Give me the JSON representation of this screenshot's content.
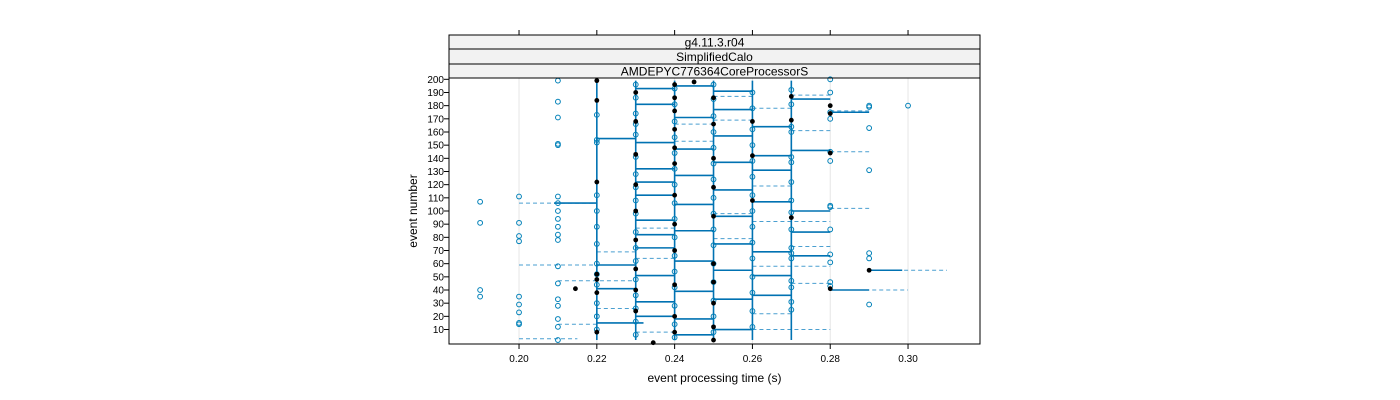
{
  "chart_data": {
    "type": "scatter",
    "strips": [
      "g4.11.3.r04",
      "SimplifiedCalo",
      "AMDEPYC776364CoreProcessorS"
    ],
    "xlabel": "event processing time (s)",
    "ylabel": "event number",
    "xlim": [
      0.182,
      0.3185
    ],
    "ylim": [
      -1,
      201
    ],
    "x_ticks": [
      "0.20",
      "0.22",
      "0.24",
      "0.26",
      "0.28",
      "0.30"
    ],
    "x_tick_values": [
      0.2,
      0.22,
      0.24,
      0.26,
      0.28,
      0.3
    ],
    "y_ticks": [
      10,
      20,
      30,
      40,
      50,
      60,
      70,
      80,
      90,
      100,
      110,
      120,
      130,
      140,
      150,
      160,
      170,
      180,
      190,
      200
    ],
    "grid": true,
    "colors": {
      "open_points": "#0080b8",
      "filled_points": "#000000",
      "lines": "#0072b2",
      "dashed": "#4a9fd0"
    },
    "series": [
      {
        "marker": "open",
        "points": [
          [
            0.19,
            107
          ],
          [
            0.19,
            91
          ],
          [
            0.19,
            40
          ],
          [
            0.19,
            35
          ],
          [
            0.2,
            111
          ],
          [
            0.2,
            91
          ],
          [
            0.2,
            81
          ],
          [
            0.2,
            77
          ],
          [
            0.2,
            35
          ],
          [
            0.2,
            29
          ],
          [
            0.2,
            23
          ],
          [
            0.2,
            15
          ],
          [
            0.2,
            14
          ],
          [
            0.21,
            199
          ],
          [
            0.21,
            183
          ],
          [
            0.21,
            171
          ],
          [
            0.21,
            151
          ],
          [
            0.21,
            150
          ],
          [
            0.21,
            111
          ],
          [
            0.21,
            106
          ],
          [
            0.21,
            100
          ],
          [
            0.21,
            94
          ],
          [
            0.21,
            88
          ],
          [
            0.21,
            82
          ],
          [
            0.21,
            78
          ],
          [
            0.21,
            58
          ],
          [
            0.21,
            45
          ],
          [
            0.21,
            33
          ],
          [
            0.21,
            28
          ],
          [
            0.21,
            18
          ],
          [
            0.21,
            12
          ],
          [
            0.21,
            2
          ],
          [
            0.22,
            173
          ],
          [
            0.22,
            154
          ],
          [
            0.22,
            152
          ],
          [
            0.22,
            112
          ],
          [
            0.22,
            100
          ],
          [
            0.22,
            88
          ],
          [
            0.22,
            75
          ],
          [
            0.22,
            60
          ],
          [
            0.22,
            52
          ],
          [
            0.22,
            44
          ],
          [
            0.22,
            30
          ],
          [
            0.22,
            20
          ],
          [
            0.22,
            10
          ],
          [
            0.23,
            196
          ],
          [
            0.23,
            186
          ],
          [
            0.23,
            174
          ],
          [
            0.23,
            166
          ],
          [
            0.23,
            158
          ],
          [
            0.23,
            141
          ],
          [
            0.23,
            128
          ],
          [
            0.23,
            118
          ],
          [
            0.23,
            108
          ],
          [
            0.23,
            98
          ],
          [
            0.23,
            84
          ],
          [
            0.23,
            72
          ],
          [
            0.23,
            62
          ],
          [
            0.23,
            48
          ],
          [
            0.23,
            36
          ],
          [
            0.23,
            26
          ],
          [
            0.23,
            16
          ],
          [
            0.23,
            6
          ],
          [
            0.24,
            193
          ],
          [
            0.24,
            181
          ],
          [
            0.24,
            168
          ],
          [
            0.24,
            156
          ],
          [
            0.24,
            144
          ],
          [
            0.24,
            132
          ],
          [
            0.24,
            120
          ],
          [
            0.24,
            106
          ],
          [
            0.24,
            94
          ],
          [
            0.24,
            80
          ],
          [
            0.24,
            66
          ],
          [
            0.24,
            54
          ],
          [
            0.24,
            42
          ],
          [
            0.24,
            28
          ],
          [
            0.24,
            14
          ],
          [
            0.24,
            4
          ],
          [
            0.25,
            196
          ],
          [
            0.25,
            185
          ],
          [
            0.25,
            172
          ],
          [
            0.25,
            160
          ],
          [
            0.25,
            148
          ],
          [
            0.25,
            136
          ],
          [
            0.25,
            124
          ],
          [
            0.25,
            110
          ],
          [
            0.25,
            98
          ],
          [
            0.25,
            86
          ],
          [
            0.25,
            74
          ],
          [
            0.25,
            60
          ],
          [
            0.25,
            46
          ],
          [
            0.25,
            32
          ],
          [
            0.25,
            20
          ],
          [
            0.25,
            8
          ],
          [
            0.26,
            190
          ],
          [
            0.26,
            178
          ],
          [
            0.26,
            162
          ],
          [
            0.26,
            150
          ],
          [
            0.26,
            138
          ],
          [
            0.26,
            126
          ],
          [
            0.26,
            112
          ],
          [
            0.26,
            100
          ],
          [
            0.26,
            88
          ],
          [
            0.26,
            76
          ],
          [
            0.26,
            64
          ],
          [
            0.26,
            50
          ],
          [
            0.26,
            38
          ],
          [
            0.26,
            24
          ],
          [
            0.26,
            12
          ],
          [
            0.27,
            192
          ],
          [
            0.27,
            181
          ],
          [
            0.27,
            164
          ],
          [
            0.27,
            160
          ],
          [
            0.27,
            141
          ],
          [
            0.27,
            137
          ],
          [
            0.27,
            122
          ],
          [
            0.27,
            108
          ],
          [
            0.27,
            99
          ],
          [
            0.27,
            86
          ],
          [
            0.27,
            72
          ],
          [
            0.27,
            68
          ],
          [
            0.27,
            64
          ],
          [
            0.27,
            47
          ],
          [
            0.27,
            42
          ],
          [
            0.27,
            31
          ],
          [
            0.27,
            25
          ],
          [
            0.28,
            200
          ],
          [
            0.28,
            190
          ],
          [
            0.28,
            175
          ],
          [
            0.28,
            170
          ],
          [
            0.28,
            145
          ],
          [
            0.28,
            138
          ],
          [
            0.28,
            104
          ],
          [
            0.28,
            103
          ],
          [
            0.28,
            86
          ],
          [
            0.28,
            67
          ],
          [
            0.28,
            61
          ],
          [
            0.28,
            46
          ],
          [
            0.28,
            43
          ],
          [
            0.29,
            180
          ],
          [
            0.29,
            179
          ],
          [
            0.29,
            163
          ],
          [
            0.29,
            131
          ],
          [
            0.29,
            68
          ],
          [
            0.29,
            64
          ],
          [
            0.29,
            29
          ],
          [
            0.3,
            180
          ]
        ]
      },
      {
        "marker": "filled",
        "points": [
          [
            0.2145,
            41
          ],
          [
            0.22,
            199
          ],
          [
            0.22,
            184
          ],
          [
            0.22,
            122
          ],
          [
            0.22,
            52
          ],
          [
            0.22,
            48
          ],
          [
            0.22,
            38
          ],
          [
            0.22,
            8
          ],
          [
            0.23,
            190
          ],
          [
            0.23,
            168
          ],
          [
            0.23,
            143
          ],
          [
            0.23,
            120
          ],
          [
            0.23,
            100
          ],
          [
            0.23,
            78
          ],
          [
            0.23,
            56
          ],
          [
            0.23,
            40
          ],
          [
            0.23,
            24
          ],
          [
            0.2345,
            0
          ],
          [
            0.24,
            196
          ],
          [
            0.24,
            186
          ],
          [
            0.24,
            176
          ],
          [
            0.24,
            162
          ],
          [
            0.24,
            148
          ],
          [
            0.24,
            136
          ],
          [
            0.24,
            112
          ],
          [
            0.24,
            90
          ],
          [
            0.24,
            70
          ],
          [
            0.24,
            44
          ],
          [
            0.24,
            20
          ],
          [
            0.24,
            8
          ],
          [
            0.245,
            198
          ],
          [
            0.25,
            186
          ],
          [
            0.25,
            166
          ],
          [
            0.25,
            140
          ],
          [
            0.25,
            118
          ],
          [
            0.25,
            96
          ],
          [
            0.25,
            60
          ],
          [
            0.25,
            46
          ],
          [
            0.25,
            30
          ],
          [
            0.25,
            12
          ],
          [
            0.25,
            2
          ],
          [
            0.26,
            168
          ],
          [
            0.26,
            142
          ],
          [
            0.26,
            108
          ],
          [
            0.27,
            187
          ],
          [
            0.27,
            169
          ],
          [
            0.27,
            95
          ],
          [
            0.28,
            180
          ],
          [
            0.28,
            174
          ],
          [
            0.28,
            144
          ],
          [
            0.28,
            41
          ],
          [
            0.29,
            55
          ]
        ]
      }
    ],
    "segments": [
      [
        0.209,
        0.22,
        106,
        "solid"
      ],
      [
        0.22,
        0.23,
        59,
        "solid"
      ],
      [
        0.22,
        0.23,
        41,
        "solid"
      ],
      [
        0.22,
        0.23,
        155,
        "solid"
      ],
      [
        0.22,
        0.232,
        15,
        "solid"
      ],
      [
        0.23,
        0.24,
        193,
        "solid"
      ],
      [
        0.23,
        0.24,
        181,
        "solid"
      ],
      [
        0.23,
        0.24,
        152,
        "solid"
      ],
      [
        0.23,
        0.24,
        132,
        "solid"
      ],
      [
        0.23,
        0.24,
        122,
        "solid"
      ],
      [
        0.23,
        0.24,
        112,
        "solid"
      ],
      [
        0.23,
        0.24,
        93,
        "solid"
      ],
      [
        0.23,
        0.24,
        82,
        "solid"
      ],
      [
        0.23,
        0.24,
        72,
        "solid"
      ],
      [
        0.23,
        0.24,
        51,
        "solid"
      ],
      [
        0.23,
        0.24,
        31,
        "solid"
      ],
      [
        0.23,
        0.24,
        20,
        "solid"
      ],
      [
        0.24,
        0.25,
        195,
        "solid"
      ],
      [
        0.24,
        0.25,
        171,
        "solid"
      ],
      [
        0.24,
        0.25,
        147,
        "solid"
      ],
      [
        0.24,
        0.25,
        127,
        "solid"
      ],
      [
        0.24,
        0.25,
        105,
        "solid"
      ],
      [
        0.24,
        0.25,
        85,
        "solid"
      ],
      [
        0.24,
        0.25,
        62,
        "solid"
      ],
      [
        0.24,
        0.25,
        39,
        "solid"
      ],
      [
        0.24,
        0.25,
        18,
        "solid"
      ],
      [
        0.24,
        0.25,
        6,
        "solid"
      ],
      [
        0.25,
        0.26,
        191,
        "solid"
      ],
      [
        0.25,
        0.26,
        177,
        "solid"
      ],
      [
        0.25,
        0.26,
        157,
        "solid"
      ],
      [
        0.25,
        0.26,
        137,
        "solid"
      ],
      [
        0.25,
        0.26,
        116,
        "solid"
      ],
      [
        0.25,
        0.26,
        96,
        "solid"
      ],
      [
        0.25,
        0.26,
        75,
        "solid"
      ],
      [
        0.25,
        0.26,
        55,
        "solid"
      ],
      [
        0.25,
        0.26,
        33,
        "solid"
      ],
      [
        0.25,
        0.26,
        10,
        "solid"
      ],
      [
        0.26,
        0.27,
        164,
        "solid"
      ],
      [
        0.26,
        0.27,
        142,
        "solid"
      ],
      [
        0.26,
        0.27,
        131,
        "solid"
      ],
      [
        0.26,
        0.27,
        107,
        "solid"
      ],
      [
        0.26,
        0.27,
        69,
        "solid"
      ],
      [
        0.26,
        0.27,
        51,
        "solid"
      ],
      [
        0.26,
        0.27,
        36,
        "solid"
      ],
      [
        0.27,
        0.28,
        185,
        "solid"
      ],
      [
        0.27,
        0.28,
        146,
        "solid"
      ],
      [
        0.27,
        0.28,
        100,
        "solid"
      ],
      [
        0.27,
        0.28,
        84,
        "solid"
      ],
      [
        0.27,
        0.28,
        66,
        "solid"
      ],
      [
        0.28,
        0.29,
        175,
        "solid"
      ],
      [
        0.28,
        0.29,
        40,
        "solid"
      ],
      [
        0.29,
        0.2985,
        55,
        "solid"
      ],
      [
        0.2,
        0.22,
        106,
        "dashed"
      ],
      [
        0.2,
        0.22,
        59,
        "dashed"
      ],
      [
        0.2,
        0.215,
        3,
        "dashed"
      ],
      [
        0.21,
        0.23,
        47,
        "dashed"
      ],
      [
        0.21,
        0.22,
        14,
        "dashed"
      ],
      [
        0.22,
        0.23,
        69,
        "dashed"
      ],
      [
        0.22,
        0.23,
        26,
        "dashed"
      ],
      [
        0.23,
        0.24,
        87,
        "dashed"
      ],
      [
        0.23,
        0.24,
        64,
        "dashed"
      ],
      [
        0.23,
        0.24,
        8,
        "dashed"
      ],
      [
        0.24,
        0.25,
        166,
        "dashed"
      ],
      [
        0.24,
        0.25,
        153,
        "dashed"
      ],
      [
        0.25,
        0.26,
        187,
        "dashed"
      ],
      [
        0.25,
        0.26,
        169,
        "dashed"
      ],
      [
        0.25,
        0.26,
        98,
        "dashed"
      ],
      [
        0.25,
        0.26,
        79,
        "dashed"
      ],
      [
        0.26,
        0.27,
        178,
        "dashed"
      ],
      [
        0.26,
        0.27,
        119,
        "dashed"
      ],
      [
        0.26,
        0.27,
        22,
        "dashed"
      ],
      [
        0.26,
        0.28,
        92,
        "dashed"
      ],
      [
        0.26,
        0.28,
        58,
        "dashed"
      ],
      [
        0.26,
        0.28,
        10,
        "dashed"
      ],
      [
        0.27,
        0.28,
        188,
        "dashed"
      ],
      [
        0.27,
        0.28,
        161,
        "dashed"
      ],
      [
        0.27,
        0.28,
        73,
        "dashed"
      ],
      [
        0.27,
        0.28,
        45,
        "dashed"
      ],
      [
        0.28,
        0.29,
        145,
        "dashed"
      ],
      [
        0.28,
        0.29,
        176,
        "dashed"
      ],
      [
        0.28,
        0.29,
        102,
        "dashed"
      ],
      [
        0.28,
        0.3,
        40,
        "dashed"
      ],
      [
        0.29,
        0.31,
        55,
        "dashed"
      ]
    ]
  }
}
